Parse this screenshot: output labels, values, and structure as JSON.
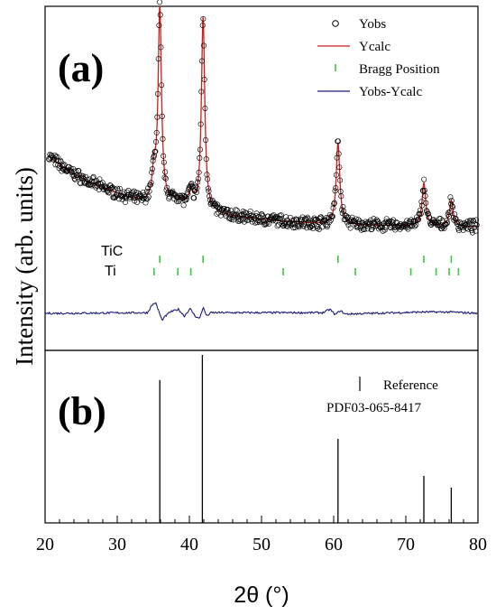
{
  "chart_data": {
    "type": "line",
    "xlabel": "2θ (°)",
    "ylabel": "Intensity (arb. units)",
    "xlim": [
      20,
      80
    ],
    "xticks": [
      "20",
      "30",
      "40",
      "50",
      "60",
      "70",
      "80"
    ],
    "panels": [
      {
        "label": "(a)",
        "legend": {
          "placement": "top-right",
          "entries": [
            {
              "name": "Yobs",
              "marker": "open-circle",
              "color": "#000000"
            },
            {
              "name": "Ycalc",
              "marker": "line",
              "color": "#c8201e"
            },
            {
              "name": "Bragg Position",
              "marker": "tick",
              "color": "#3cc43c"
            },
            {
              "name": "Yobs-Ycalc",
              "marker": "line",
              "color": "#1a1a7a"
            }
          ]
        },
        "background": [
          [
            20.5,
            0.375
          ],
          [
            23,
            0.31
          ],
          [
            26,
            0.255
          ],
          [
            30,
            0.2
          ],
          [
            33,
            0.165
          ],
          [
            35,
            0.15
          ],
          [
            38,
            0.155
          ],
          [
            42,
            0.115
          ],
          [
            46,
            0.095
          ],
          [
            50,
            0.08
          ],
          [
            54,
            0.068
          ],
          [
            58,
            0.06
          ],
          [
            62,
            0.055
          ],
          [
            66,
            0.052
          ],
          [
            70,
            0.05
          ],
          [
            75,
            0.048
          ],
          [
            80,
            0.045
          ]
        ],
        "peaks": [
          {
            "x": 35.1,
            "h": 0.14,
            "w": 0.32
          },
          {
            "x": 35.9,
            "h": 0.9,
            "w": 0.28
          },
          {
            "x": 38.4,
            "h": 0.02,
            "w": 0.5
          },
          {
            "x": 40.2,
            "h": 0.07,
            "w": 0.35
          },
          {
            "x": 41.9,
            "h": 0.9,
            "w": 0.28
          },
          {
            "x": 60.6,
            "h": 0.38,
            "w": 0.3
          },
          {
            "x": 72.5,
            "h": 0.2,
            "w": 0.3
          },
          {
            "x": 76.3,
            "h": 0.12,
            "w": 0.3
          }
        ],
        "difference": [
          [
            20,
            0.0
          ],
          [
            34.2,
            0.005
          ],
          [
            34.8,
            0.06
          ],
          [
            35.3,
            0.08
          ],
          [
            35.8,
            0.01
          ],
          [
            36.2,
            -0.05
          ],
          [
            36.7,
            -0.02
          ],
          [
            37.3,
            0.01
          ],
          [
            38.5,
            0.03
          ],
          [
            39.3,
            -0.02
          ],
          [
            40.1,
            0.035
          ],
          [
            40.8,
            -0.02
          ],
          [
            41.4,
            -0.04
          ],
          [
            41.9,
            0.045
          ],
          [
            42.4,
            -0.02
          ],
          [
            43.0,
            0.005
          ],
          [
            58.5,
            0.005
          ],
          [
            59.5,
            0.03
          ],
          [
            60.2,
            -0.01
          ],
          [
            60.9,
            0.02
          ],
          [
            61.6,
            -0.005
          ],
          [
            72.3,
            0.01
          ],
          [
            76.2,
            0.01
          ],
          [
            80,
            0.0
          ]
        ],
        "bragg": [
          {
            "phase": "TiC",
            "positions": [
              35.9,
              41.9,
              60.6,
              72.5,
              76.3
            ]
          },
          {
            "phase": "Ti",
            "positions": [
              35.1,
              38.4,
              40.2,
              53.0,
              63.0,
              70.7,
              74.2,
              76.0,
              77.3
            ]
          }
        ]
      },
      {
        "label": "(b)",
        "legend": {
          "placement": "top-right",
          "entries": [
            {
              "name": "Reference",
              "marker": "tick",
              "color": "#000000"
            },
            {
              "name": "PDF03-065-8417",
              "marker": "none",
              "color": "#000000"
            }
          ]
        },
        "reference_lines": [
          {
            "x": 35.9,
            "intensity": 0.85
          },
          {
            "x": 41.8,
            "intensity": 1.0
          },
          {
            "x": 60.6,
            "intensity": 0.5
          },
          {
            "x": 72.5,
            "intensity": 0.28
          },
          {
            "x": 76.3,
            "intensity": 0.21
          }
        ]
      }
    ]
  }
}
